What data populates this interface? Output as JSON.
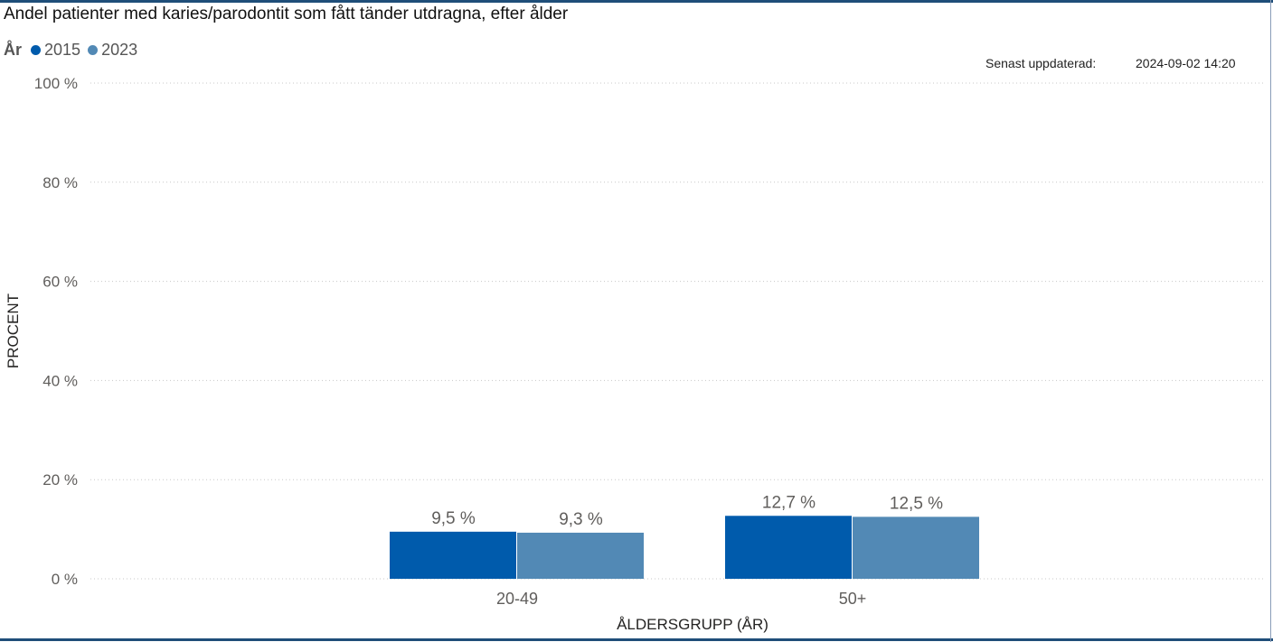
{
  "title": "Andel patienter med karies/parodontit som fått tänder utdragna, efter ålder",
  "legend": {
    "title": "År",
    "items": [
      {
        "label": "2015",
        "color": "#005bac"
      },
      {
        "label": "2023",
        "color": "#5289b5"
      }
    ]
  },
  "updated": {
    "label": "Senast uppdaterad:",
    "value": "2024-09-02 14:20"
  },
  "chart_data": {
    "type": "bar",
    "title": "Andel patienter med karies/parodontit som fått tänder utdragna, efter ålder",
    "xlabel": "ÅLDERSGRUPP (ÅR)",
    "ylabel": "PROCENT",
    "ylim": [
      0,
      100
    ],
    "yticks": [
      0,
      20,
      40,
      60,
      80,
      100
    ],
    "ytick_labels": [
      "0 %",
      "20 %",
      "40 %",
      "60 %",
      "80 %",
      "100 %"
    ],
    "grid": true,
    "legend_position": "top-left",
    "categories": [
      "20-49",
      "50+"
    ],
    "series": [
      {
        "name": "2015",
        "color": "#005bac",
        "values": [
          9.5,
          12.7
        ],
        "labels": [
          "9,5 %",
          "12,7 %"
        ]
      },
      {
        "name": "2023",
        "color": "#5289b5",
        "values": [
          9.3,
          12.5
        ],
        "labels": [
          "9,3 %",
          "12,5 %"
        ]
      }
    ]
  }
}
